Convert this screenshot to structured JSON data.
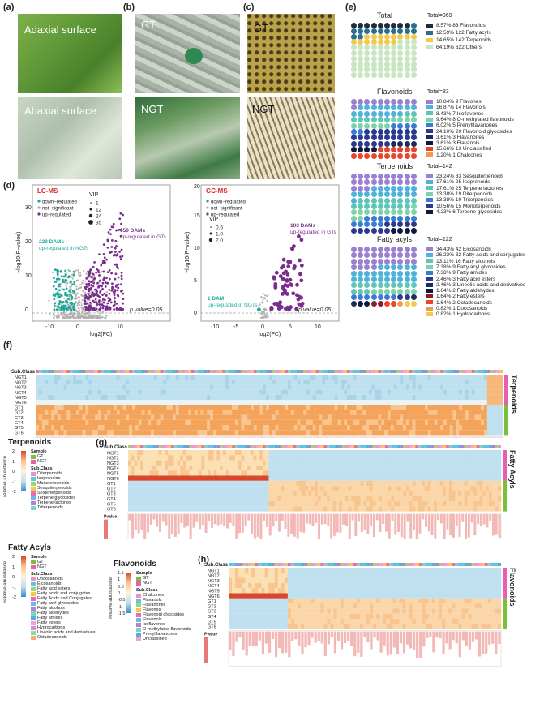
{
  "panels": {
    "a": "(a)",
    "b": "(b)",
    "c": "(c)",
    "d": "(d)",
    "e": "(e)",
    "f": "(f)",
    "g": "(g)",
    "h": "(h)"
  },
  "photos": {
    "adaxial": "Adaxial surface",
    "abaxial": "Abaxial  surface",
    "gt_sem": "GT",
    "ngt_sem": "NGT",
    "gt_lm": "GT",
    "ngt_lm": "NGT"
  },
  "volcano_lc": {
    "title": "LC-MS",
    "legend": [
      "down−regulated",
      "not−significant",
      "up−regulated"
    ],
    "vip_title": "VIP",
    "vip_sizes": [
      "1",
      "12",
      "24",
      "35"
    ],
    "up_note": "650 DAMs",
    "up_note2": "up-regulated in GTs",
    "down_note": "220 DAMs",
    "down_note2": "up-regulated in NGTs",
    "pvalue": "p value=0.05",
    "xlabel": "log2(FC)",
    "ylabel": "−log10(P−value)",
    "xticks": [
      "-10",
      "0",
      "10"
    ],
    "yticks": [
      "0",
      "10",
      "20",
      "30"
    ]
  },
  "volcano_gc": {
    "title": "GC-MS",
    "legend": [
      "down−regulated",
      "not−significant",
      "up−regulated"
    ],
    "vip_title": "VIP",
    "vip_sizes": [
      "0.5",
      "1.0",
      "2.0"
    ],
    "up_note": "103 DAMs",
    "up_note2": "up-regulated in GTs",
    "down_note": "1 DAM",
    "down_note2": "up-regulated in NGTs",
    "pvalue": "p value=0.05",
    "xlabel": "log2(FC)",
    "ylabel": "−log10(P−value)",
    "xticks": [
      "-10",
      "-5",
      "0",
      "5",
      "10"
    ],
    "yticks": [
      "0",
      "5",
      "10",
      "15",
      "20"
    ]
  },
  "waffles": [
    {
      "title": "Total",
      "total": "Total=969",
      "items": [
        {
          "text": "8.57%  83 Flavonoids",
          "color": "#1f2d3a"
        },
        {
          "text": "12.59%  122 Fatty acyls",
          "color": "#2a6f8f"
        },
        {
          "text": "14.65%  142 Terpenoids",
          "color": "#f2c94c"
        },
        {
          "text": "64.19%  622 Others",
          "color": "#c8e6c0"
        }
      ]
    },
    {
      "title": "Flavonoids",
      "total": "Total=83",
      "items": [
        {
          "text": "10.84%  9 Flavones",
          "color": "#9b7fd1"
        },
        {
          "text": "16.87%  14 Flavonols",
          "color": "#4fb3d9"
        },
        {
          "text": "8.43%  7 Isoflavones",
          "color": "#5ec6b8"
        },
        {
          "text": "9.64%  8 O-methylated flavonoids",
          "color": "#7dd3a8"
        },
        {
          "text": "6.02%  5 Prenylflavanones",
          "color": "#3a7bd5"
        },
        {
          "text": "24.10%  20 Flavonoid glycosides",
          "color": "#2b3a8c"
        },
        {
          "text": "3.61%  3 Flavanones",
          "color": "#1e2a5a"
        },
        {
          "text": "3.61%  3 Flavanols",
          "color": "#101840"
        },
        {
          "text": "15.66%  13 Unclassified",
          "color": "#e8452c"
        },
        {
          "text": "1.20%  1 Chalcones",
          "color": "#f2994a"
        }
      ]
    },
    {
      "title": "Terpenoids",
      "total": "Total=142",
      "items": [
        {
          "text": "23.24%  33 Sesquiterpenoids",
          "color": "#9b7fd1"
        },
        {
          "text": "17.61%  25 Isoprenoids",
          "color": "#4fb3d9"
        },
        {
          "text": "17.61%  25 Terpene lactones",
          "color": "#5ec6b8"
        },
        {
          "text": "13.38%  19 Diterpenoids",
          "color": "#7dd3a8"
        },
        {
          "text": "13.38%  19 Triterpenoids",
          "color": "#3a7bd5"
        },
        {
          "text": "10.56%  15 Monoterpenoids",
          "color": "#2b3a8c"
        },
        {
          "text": "4.23%  6 Terpene glycosides",
          "color": "#101840"
        }
      ]
    },
    {
      "title": "Fatty acyls",
      "total": "Total=122",
      "items": [
        {
          "text": "34.43%  42 Eicosanoids",
          "color": "#9b7fd1"
        },
        {
          "text": "26.23%  32 Fatty acids and conjugates",
          "color": "#4fb3d9"
        },
        {
          "text": "13.11%  16 Fatty alcohols",
          "color": "#5ec6b8"
        },
        {
          "text": "7.38%  9 Fatty acyl glycosides",
          "color": "#7dd3a8"
        },
        {
          "text": "7.38%  9 Fatty amides",
          "color": "#3a7bd5"
        },
        {
          "text": "2.46%  3 Fatty acid esters",
          "color": "#2b3a8c"
        },
        {
          "text": "2.46%  3 Lineolic acids and derivatives",
          "color": "#1e2a5a"
        },
        {
          "text": "1.64%  2 Fatty aldehydes",
          "color": "#101840"
        },
        {
          "text": "1.64%  2 Fatty esters",
          "color": "#8b1e2d"
        },
        {
          "text": "1.64%  2 Octadecanoids",
          "color": "#e8452c"
        },
        {
          "text": "0.82%  1 Docosanoids",
          "color": "#f2994a"
        },
        {
          "text": "0.82%  1 Hydrocarbons",
          "color": "#f2c94c"
        }
      ]
    }
  ],
  "heatmaps": {
    "subclass": "Sub.Class",
    "rows": [
      "NGT1",
      "NGT2",
      "NGT3",
      "NGT4",
      "NGT5",
      "NGT6",
      "GT1",
      "GT2",
      "GT3",
      "GT4",
      "GT5",
      "GT6"
    ],
    "pvalue": "Pvalue",
    "terp_label": "Terpenoids",
    "fatty_label": "Fatty Acyls",
    "flav_label": "Flavonoids"
  },
  "legends": {
    "terp": {
      "title": "Terpenoids",
      "cbar_label": "relative abundance",
      "ticks": [
        "2",
        "1",
        "0",
        "-1",
        "-2"
      ],
      "sample_title": "Sample",
      "samples": [
        "GT",
        "NGT"
      ],
      "subclass_title": "Sub.Class",
      "subclasses": [
        "Diterpenoids",
        "Isoprenoids",
        "Monoterpenoids",
        "Sesquiterpenoids",
        "Sesterterpenoids",
        "Terpene glycosides",
        "Terpene lactones",
        "Triterpenoids"
      ]
    },
    "fatty": {
      "title": "Fatty Acyls",
      "cbar_label": "relative abundance",
      "ticks": [
        "2",
        "1",
        "0",
        "-1",
        "-2"
      ],
      "sample_title": "Sample",
      "samples": [
        "GT",
        "NGT"
      ],
      "subclass_title": "Sub.Class",
      "subclasses": [
        "Docosanoids",
        "Eicosanoids",
        "Fatty acid esters",
        "Fatty acids and conjugates",
        "Fatty Acids and Conjugates",
        "Fatty acyl glycosides",
        "Fatty alcohols",
        "Fatty aldehydes",
        "Fatty amides",
        "Fatty esters",
        "Hydrocarbons",
        "Lineolic acids and derivatives",
        "Octadecanoids"
      ]
    },
    "flav": {
      "title": "Flavonoids",
      "cbar_label": "relative abundance",
      "ticks": [
        "1.5",
        "1",
        "0.5",
        "0",
        "-0.5",
        "-1",
        "-1.5"
      ],
      "sample_title": "Sample",
      "samples": [
        "GT",
        "NGT"
      ],
      "subclass_title": "Sub.Class",
      "subclasses": [
        "Chalcones",
        "Flavanols",
        "Flavanones",
        "Flavones",
        "Flavonoid glycosides",
        "Flavonols",
        "Isoflavones",
        "O-methylated flavonoids",
        "Prenylflavanones",
        "Unclassified"
      ]
    }
  },
  "colors": {
    "up": "#7b2d8e",
    "down": "#1aa99a",
    "ns": "#b0b0b0",
    "gt_band": "#7cbf3a",
    "ngt_band": "#e65fb0",
    "hm_high": "#f4a35a",
    "hm_low": "#bfe0ee",
    "hm_mid": "#fbe5c8"
  }
}
